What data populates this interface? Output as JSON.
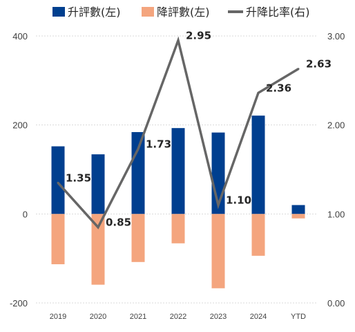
{
  "chart_data": {
    "type": "bar",
    "categories": [
      "2019",
      "2020",
      "2021",
      "2022",
      "2023",
      "2024",
      "YTD"
    ],
    "series": [
      {
        "name": "升評數(左)",
        "kind": "bar",
        "axis": "left",
        "color": "#003f8f",
        "values": [
          152,
          134,
          184,
          193,
          183,
          221,
          20
        ]
      },
      {
        "name": "降評數(左)",
        "kind": "bar",
        "axis": "left",
        "color": "#f4a57e",
        "values": [
          -113,
          -159,
          -108,
          -66,
          -167,
          -94,
          -10
        ]
      },
      {
        "name": "升降比率(右)",
        "kind": "line",
        "axis": "right",
        "color": "#666666",
        "values": [
          1.35,
          0.85,
          1.73,
          2.95,
          1.1,
          2.36,
          2.63
        ]
      }
    ],
    "data_labels": [
      "1.35",
      "0.85",
      "1.73",
      "2.95",
      "1.10",
      "2.36",
      "2.63"
    ],
    "left_axis": {
      "ylim": [
        -200,
        400
      ],
      "ticks": [
        "-200",
        "0",
        "200",
        "400"
      ]
    },
    "right_axis": {
      "ylim": [
        0,
        3
      ],
      "ticks": [
        "0.00",
        "1.00",
        "2.00",
        "3.00"
      ]
    },
    "grid": "horizontal dotted",
    "legend_position": "top"
  }
}
